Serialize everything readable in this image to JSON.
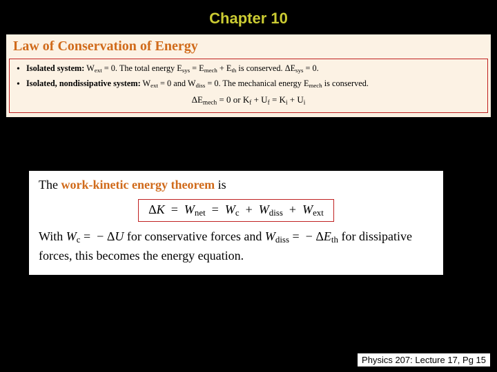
{
  "colors": {
    "page_bg": "#000000",
    "title_color": "#cccc33",
    "box1_bg": "#fcf2e4",
    "box1_header_color": "#d06a1a",
    "red_border": "#c02020",
    "box2_bg": "#ffffff",
    "accent_color": "#d06a1a",
    "footer_bg": "#ffffff"
  },
  "title": "Chapter 10",
  "box1": {
    "header": "Law of Conservation of Energy",
    "bullets": [
      {
        "lead": "Isolated system:",
        "rest_html": "W<sub>ext</sub> = 0. The total energy E<sub>sys</sub> = E<sub>mech</sub> + E<sub>th</sub> is conserved. ΔE<sub>sys</sub> = 0."
      },
      {
        "lead": "Isolated, nondissipative system:",
        "rest_html": "W<sub>ext</sub> = 0 and W<sub>diss</sub> = 0. The mechanical energy E<sub>mech</sub> is conserved."
      }
    ],
    "equation_html": "ΔE<sub>mech</sub> = 0 or K<sub>f</sub> + U<sub>f</sub> = K<sub>i</sub> + U<sub>i</sub>"
  },
  "box2": {
    "line1_pre": "The ",
    "line1_accent": "work-kinetic energy theorem",
    "line1_post": " is",
    "equation_html": "Δ<span class=\"mathit\">K</span> &nbsp;=&nbsp; <span class=\"mathit\">W</span><sub>net</sub> &nbsp;=&nbsp; <span class=\"mathit\">W</span><sub>c</sub> &nbsp;+&nbsp; <span class=\"mathit\">W</span><sub>diss</sub> &nbsp;+&nbsp; <span class=\"mathit\">W</span><sub>ext</sub>",
    "line2_html": "With <span class=\"mathit\">W</span><sub>c</sub> = &nbsp;&minus; Δ<span class=\"mathit\">U</span> for conservative forces and <span class=\"mathit\">W</span><sub>diss</sub> = &nbsp;&minus; Δ<span class=\"mathit\">E</span><sub>th</sub> for dissipative forces, this becomes the energy equation."
  },
  "footer": "Physics 207: Lecture 17, Pg 15"
}
